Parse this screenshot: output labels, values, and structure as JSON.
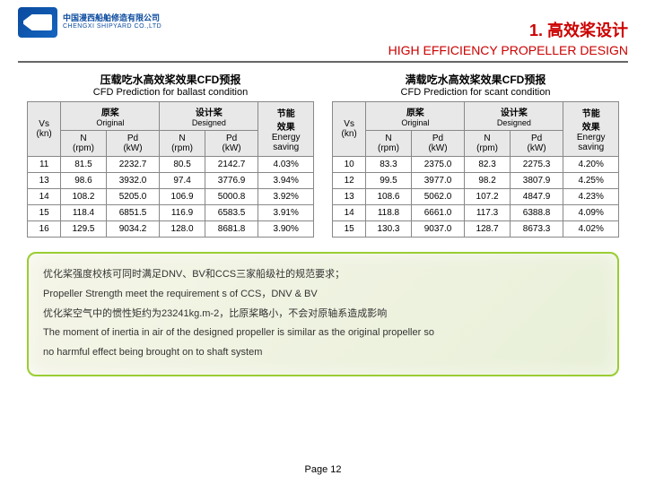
{
  "logo": {
    "cn": "中国漫西船舶修造有限公司",
    "en": "CHENGXI SHIPYARD CO.,LTD"
  },
  "title": {
    "cn": "1. 高效桨设计",
    "en": "HIGH EFFICIENCY PROPELLER DESIGN"
  },
  "left": {
    "title_cn": "压载吃水高效桨效果CFD预报",
    "title_en": "CFD Prediction for ballast condition",
    "cols": {
      "orig_cn": "原桨",
      "orig_en": "Original",
      "des_cn": "设计桨",
      "des_en": "Designed",
      "eff_cn": "节能",
      "eff_en": "效果",
      "vs": "Vs",
      "kn": "(kn)",
      "n": "N",
      "rpm": "(rpm)",
      "pd": "Pd",
      "kw": "(kW)",
      "energy": "Energy",
      "saving": "saving"
    },
    "rows": [
      {
        "vs": "11",
        "n1": "81.5",
        "p1": "2232.7",
        "n2": "80.5",
        "p2": "2142.7",
        "e": "4.03%"
      },
      {
        "vs": "13",
        "n1": "98.6",
        "p1": "3932.0",
        "n2": "97.4",
        "p2": "3776.9",
        "e": "3.94%"
      },
      {
        "vs": "14",
        "n1": "108.2",
        "p1": "5205.0",
        "n2": "106.9",
        "p2": "5000.8",
        "e": "3.92%"
      },
      {
        "vs": "15",
        "n1": "118.4",
        "p1": "6851.5",
        "n2": "116.9",
        "p2": "6583.5",
        "e": "3.91%"
      },
      {
        "vs": "16",
        "n1": "129.5",
        "p1": "9034.2",
        "n2": "128.0",
        "p2": "8681.8",
        "e": "3.90%"
      }
    ]
  },
  "right": {
    "title_cn": "满载吃水高效桨效果CFD预报",
    "title_en": "CFD Prediction for scant condition",
    "rows": [
      {
        "vs": "10",
        "n1": "83.3",
        "p1": "2375.0",
        "n2": "82.3",
        "p2": "2275.3",
        "e": "4.20%"
      },
      {
        "vs": "12",
        "n1": "99.5",
        "p1": "3977.0",
        "n2": "98.2",
        "p2": "3807.9",
        "e": "4.25%"
      },
      {
        "vs": "13",
        "n1": "108.6",
        "p1": "5062.0",
        "n2": "107.2",
        "p2": "4847.9",
        "e": "4.23%"
      },
      {
        "vs": "14",
        "n1": "118.8",
        "p1": "6661.0",
        "n2": "117.3",
        "p2": "6388.8",
        "e": "4.09%"
      },
      {
        "vs": "15",
        "n1": "130.3",
        "p1": "9037.0",
        "n2": "128.7",
        "p2": "8673.3",
        "e": "4.02%"
      }
    ]
  },
  "notes": [
    "优化桨强度校核可同时满足DNV、BV和CCS三家船级社的规范要求；",
    "Propeller Strength meet the requirement s of CCS，DNV & BV",
    "优化桨空气中的惯性矩约为23241kg.m-2，比原桨略小，不会对原轴系造成影响",
    "The moment of inertia in air of the designed propeller is similar as the original propeller so",
    "no harmful effect being brought on to shaft system"
  ],
  "pager": "Page 12"
}
